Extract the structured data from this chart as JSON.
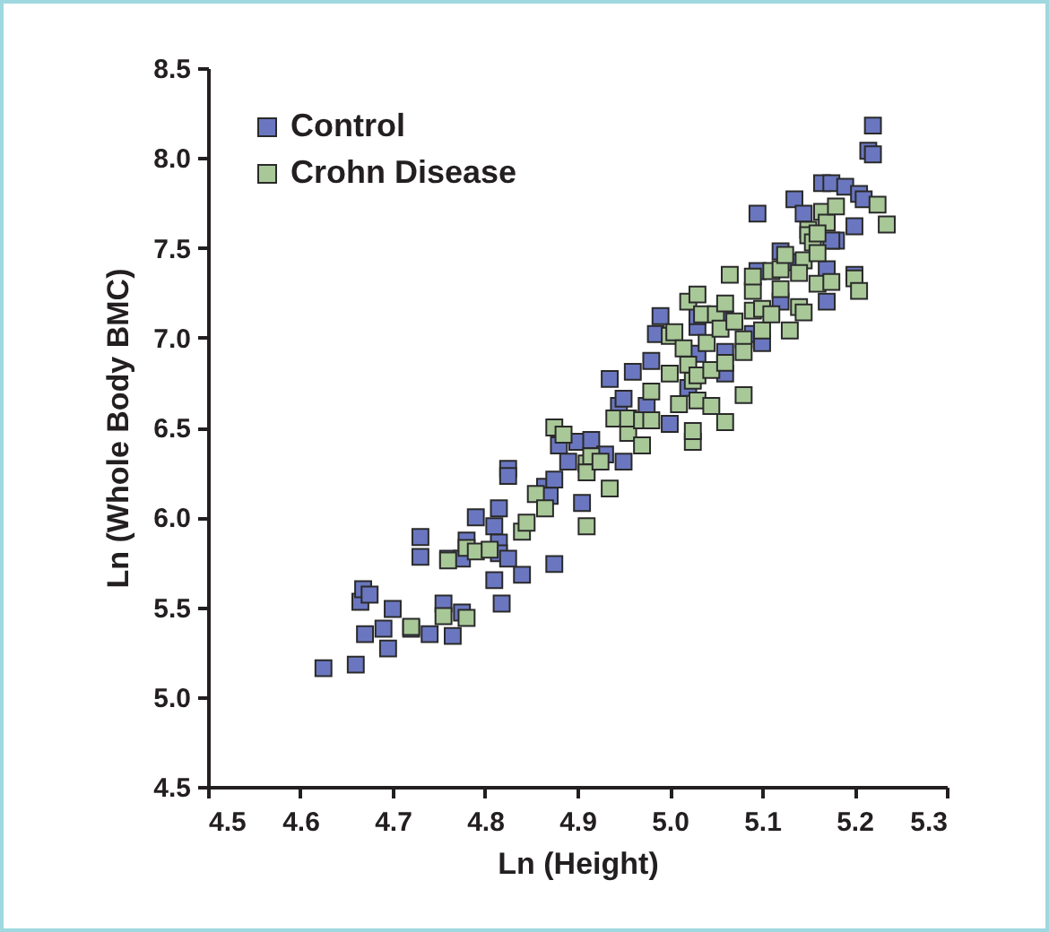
{
  "chart_data": {
    "type": "scatter",
    "xlabel": "Ln (Height)",
    "ylabel": "Ln (Whole Body BMC)",
    "xlim": [
      4.5,
      5.3
    ],
    "xticks": [
      {
        "value": 4.5,
        "label": "4.5"
      },
      {
        "value": 4.6,
        "label": "4.6"
      },
      {
        "value": 4.7,
        "label": "4.7"
      },
      {
        "value": 4.8,
        "label": "4.8"
      },
      {
        "value": 4.9,
        "label": "4.9"
      },
      {
        "value": 5.0,
        "label": "5.0"
      },
      {
        "value": 5.1,
        "label": "5.1"
      },
      {
        "value": 5.2,
        "label": "5.2"
      },
      {
        "value": 5.3,
        "label": "5.3"
      }
    ],
    "ylim": [
      4.5,
      8.5
    ],
    "yticks": [
      {
        "value": 4.5,
        "label": "4.5"
      },
      {
        "value": 5.0,
        "label": "5.0"
      },
      {
        "value": 5.5,
        "label": "5.5"
      },
      {
        "value": 6.0,
        "label": "6.0"
      },
      {
        "value": 6.5,
        "label": "6.5"
      },
      {
        "value": 7.0,
        "label": "7.0"
      },
      {
        "value": 7.5,
        "label": "7.5"
      },
      {
        "value": 8.0,
        "label": "8.0"
      },
      {
        "value": 8.5,
        "label": "8.5"
      }
    ],
    "grid": false,
    "legend": "top left",
    "marker": "square",
    "series": [
      {
        "name": "Control",
        "color": "#6a77c0",
        "x": [
          4.625,
          4.66,
          4.67,
          4.665,
          4.668,
          4.675,
          4.69,
          4.695,
          4.7,
          4.72,
          4.73,
          4.73,
          4.74,
          4.755,
          4.765,
          4.775,
          4.76,
          4.775,
          4.78,
          4.79,
          4.81,
          4.81,
          4.815,
          4.815,
          4.815,
          4.818,
          4.825,
          4.825,
          4.825,
          4.84,
          4.865,
          4.87,
          4.875,
          4.875,
          4.88,
          4.89,
          4.9,
          4.905,
          4.915,
          4.93,
          4.935,
          4.945,
          4.95,
          4.95,
          4.96,
          4.975,
          4.98,
          4.985,
          4.99,
          5.0,
          5.02,
          5.03,
          5.03,
          5.03,
          5.06,
          5.06,
          5.095,
          5.09,
          5.095,
          5.1,
          5.12,
          5.135,
          5.145,
          5.18,
          5.165,
          5.17,
          5.175,
          5.17,
          5.175,
          5.19,
          5.2,
          5.2,
          5.205,
          5.21,
          5.215,
          5.22,
          5.22,
          5.13,
          5.12,
          5.06
        ],
        "values": [
          5.16,
          5.18,
          5.35,
          5.53,
          5.6,
          5.57,
          5.38,
          5.27,
          5.49,
          5.38,
          5.78,
          5.89,
          5.35,
          5.52,
          5.34,
          5.47,
          5.77,
          5.77,
          5.87,
          6.0,
          5.95,
          5.65,
          5.86,
          5.8,
          6.05,
          5.52,
          5.77,
          6.27,
          6.23,
          5.68,
          6.17,
          6.12,
          6.21,
          5.74,
          6.4,
          6.31,
          6.42,
          6.08,
          6.43,
          6.35,
          6.77,
          6.62,
          6.66,
          6.31,
          6.81,
          6.62,
          6.87,
          7.02,
          7.12,
          6.52,
          6.72,
          7.06,
          7.12,
          6.91,
          6.92,
          6.8,
          7.69,
          7.02,
          7.37,
          6.97,
          7.48,
          7.77,
          7.69,
          7.54,
          7.86,
          7.2,
          7.86,
          7.38,
          7.54,
          7.84,
          7.62,
          7.35,
          7.8,
          7.77,
          8.04,
          8.02,
          8.18,
          7.42,
          7.2,
          7.1
        ]
      },
      {
        "name": "Crohn Disease",
        "color": "#a8c898",
        "x": [
          4.72,
          4.755,
          4.76,
          4.78,
          4.78,
          4.79,
          4.805,
          4.84,
          4.845,
          4.855,
          4.865,
          4.875,
          4.885,
          4.91,
          4.91,
          4.91,
          4.915,
          4.925,
          4.935,
          4.94,
          4.955,
          4.955,
          4.97,
          4.97,
          4.98,
          4.98,
          5.0,
          5.0,
          5.005,
          5.01,
          5.015,
          5.02,
          5.025,
          5.025,
          5.025,
          5.03,
          5.02,
          5.03,
          5.03,
          5.035,
          5.04,
          5.045,
          5.045,
          5.05,
          5.055,
          5.06,
          5.06,
          5.06,
          5.065,
          5.07,
          5.08,
          5.08,
          5.08,
          5.09,
          5.09,
          5.09,
          5.1,
          5.1,
          5.11,
          5.11,
          5.12,
          5.12,
          5.125,
          5.13,
          5.14,
          5.145,
          5.145,
          5.15,
          5.15,
          5.155,
          5.16,
          5.16,
          5.165,
          5.17,
          5.175,
          5.18,
          5.2,
          5.205,
          5.225,
          5.235,
          5.16,
          5.14
        ],
        "values": [
          5.39,
          5.45,
          5.76,
          5.44,
          5.83,
          5.81,
          5.82,
          5.92,
          5.97,
          6.13,
          6.05,
          6.5,
          6.46,
          6.3,
          6.25,
          5.95,
          6.34,
          6.31,
          6.16,
          6.55,
          6.47,
          6.55,
          6.4,
          6.54,
          6.54,
          6.7,
          6.8,
          7.01,
          7.03,
          6.63,
          6.94,
          6.85,
          6.76,
          6.42,
          6.48,
          6.65,
          7.2,
          7.24,
          6.79,
          7.13,
          6.97,
          6.62,
          6.82,
          7.13,
          7.05,
          6.86,
          6.53,
          7.19,
          7.35,
          7.09,
          6.68,
          6.99,
          6.92,
          7.15,
          7.26,
          7.34,
          7.04,
          7.16,
          7.13,
          7.37,
          7.27,
          7.38,
          7.46,
          7.04,
          7.17,
          7.14,
          7.43,
          7.6,
          7.57,
          7.53,
          7.3,
          7.47,
          7.7,
          7.64,
          7.31,
          7.73,
          7.33,
          7.26,
          7.74,
          7.63,
          7.58,
          7.36
        ]
      }
    ]
  }
}
